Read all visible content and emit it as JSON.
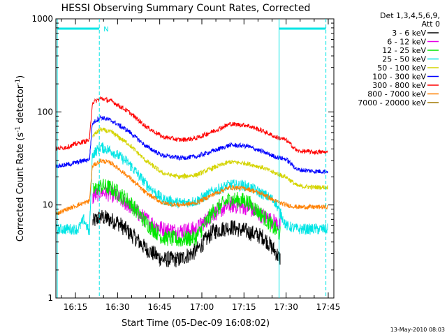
{
  "chart_data": {
    "type": "line",
    "title": "HESSI Observing Summary Count Rates, Corrected",
    "xlabel": "Start Time (05-Dec-09 16:08:02)",
    "ylabel_main": "Corrected Count Rate (s",
    "ylabel_sup1": "-1",
    "ylabel_mid": " detector",
    "ylabel_sup2": "-1",
    "ylabel_end": ")",
    "footer_date": "13-May-2010 08:03",
    "y_scale": "log",
    "xlim": [
      "16:08:02",
      "17:47:00"
    ],
    "ylim": [
      1,
      1000
    ],
    "x_ticks": [
      "16:15",
      "16:30",
      "16:45",
      "17:00",
      "17:15",
      "17:30",
      "17:45"
    ],
    "y_ticks": [
      "1",
      "10",
      "100",
      "1000"
    ],
    "legend": {
      "header": [
        "Det 1,3,4,5,6,9,",
        "Att 0"
      ],
      "placement": "top-right"
    },
    "markers": {
      "night_marker": "N",
      "night_color": "#00e5e5",
      "saa_intervals_color": "#00e5e5"
    },
    "series": [
      {
        "name": "3 - 6 keV",
        "color": "#000000",
        "times": [
          "16:08",
          "16:16",
          "16:20",
          "16:21",
          "16:24",
          "16:30",
          "16:36",
          "16:40",
          "16:46",
          "16:52",
          "16:58",
          "17:04",
          "17:10",
          "17:16",
          "17:22",
          "17:26",
          "17:28",
          "17:30"
        ],
        "values": [
          null,
          null,
          null,
          6.5,
          7.5,
          6.5,
          4.5,
          3.4,
          2.6,
          2.6,
          3.2,
          5.2,
          5.8,
          5.2,
          4.5,
          3.2,
          2.6,
          null
        ]
      },
      {
        "name": "6 - 12 keV",
        "color": "#e600e6",
        "times": [
          "16:08",
          "16:20",
          "16:21",
          "16:24",
          "16:28",
          "16:34",
          "16:40",
          "16:46",
          "16:52",
          "16:58",
          "17:04",
          "17:10",
          "17:16",
          "17:22",
          "17:26",
          "17:28",
          "17:30"
        ],
        "values": [
          null,
          null,
          12,
          14,
          13,
          10,
          7,
          5.5,
          5.2,
          5.5,
          8,
          10,
          9.5,
          7.5,
          6.5,
          6,
          null
        ]
      },
      {
        "name": "12 - 25 keV",
        "color": "#00e600",
        "times": [
          "16:08",
          "16:20",
          "16:21",
          "16:24",
          "16:28",
          "16:34",
          "16:40",
          "16:46",
          "16:52",
          "16:58",
          "17:04",
          "17:10",
          "17:16",
          "17:22",
          "17:26",
          "17:28",
          "17:30"
        ],
        "values": [
          null,
          null,
          14,
          16,
          15,
          11,
          6.5,
          4.5,
          4.2,
          4.5,
          8.5,
          11.5,
          11,
          7.5,
          5.5,
          4.8,
          null
        ]
      },
      {
        "name": "25 - 50 keV",
        "color": "#00e5e5",
        "times": [
          "16:08",
          "16:16",
          "16:18",
          "16:20",
          "16:21",
          "16:24",
          "16:28",
          "16:34",
          "16:40",
          "16:46",
          "16:52",
          "16:58",
          "17:04",
          "17:10",
          "17:16",
          "17:22",
          "17:26",
          "17:30",
          "17:34",
          "17:40",
          "17:45"
        ],
        "values": [
          5.5,
          5.5,
          7,
          5,
          35,
          42,
          38,
          28,
          17,
          11.5,
          10.5,
          11,
          14,
          16.5,
          16,
          13,
          11,
          6,
          5.5,
          5.5,
          5.5
        ]
      },
      {
        "name": "50 - 100 keV",
        "color": "#d4d400",
        "times": [
          "16:20",
          "16:21",
          "16:24",
          "16:28",
          "16:34",
          "16:40",
          "16:46",
          "16:52",
          "16:58",
          "17:04",
          "17:10",
          "17:16",
          "17:22",
          "17:26",
          "17:30",
          "17:34",
          "17:40",
          "17:45"
        ],
        "values": [
          null,
          55,
          65,
          60,
          45,
          30,
          22,
          20,
          21,
          25,
          29,
          28,
          25,
          22,
          20,
          16,
          15.5,
          15.5
        ]
      },
      {
        "name": "100 - 300 keV",
        "color": "#0000ff",
        "times": [
          "16:08",
          "16:12",
          "16:16",
          "16:20",
          "16:21",
          "16:24",
          "16:28",
          "16:34",
          "16:40",
          "16:46",
          "16:52",
          "16:58",
          "17:04",
          "17:10",
          "17:16",
          "17:22",
          "17:26",
          "17:30",
          "17:34",
          "17:40",
          "17:45"
        ],
        "values": [
          26,
          27,
          29,
          31,
          75,
          88,
          80,
          62,
          43,
          34,
          32,
          33,
          38,
          44,
          43,
          37,
          33,
          31,
          24,
          23,
          23
        ]
      },
      {
        "name": "300 - 800 keV",
        "color": "#ff0000",
        "times": [
          "16:08",
          "16:12",
          "16:16",
          "16:20",
          "16:21",
          "16:24",
          "16:28",
          "16:34",
          "16:40",
          "16:46",
          "16:52",
          "16:58",
          "17:04",
          "17:10",
          "17:16",
          "17:22",
          "17:26",
          "17:30",
          "17:34",
          "17:40",
          "17:45"
        ],
        "values": [
          40,
          42,
          46,
          50,
          125,
          140,
          130,
          100,
          70,
          54,
          50,
          52,
          62,
          74,
          72,
          62,
          54,
          50,
          38,
          37,
          37
        ]
      },
      {
        "name": "800 - 7000 keV",
        "color": "#ff8000",
        "times": [
          "16:08",
          "16:12",
          "16:16",
          "16:20",
          "16:21",
          "16:24",
          "16:28",
          "16:34",
          "16:40",
          "16:46",
          "16:52",
          "16:58",
          "17:04",
          "17:10",
          "17:16",
          "17:22",
          "17:26",
          "17:30",
          "17:34",
          "17:40",
          "17:45"
        ],
        "values": [
          8,
          9,
          10,
          11,
          26,
          30,
          28,
          20,
          13.5,
          10.5,
          10,
          10.5,
          13,
          15.5,
          15,
          13,
          11,
          10,
          9.5,
          9.5,
          9.5
        ]
      },
      {
        "name": "7000 - 20000 keV",
        "color": "#a07800",
        "times": [],
        "values": []
      }
    ]
  }
}
